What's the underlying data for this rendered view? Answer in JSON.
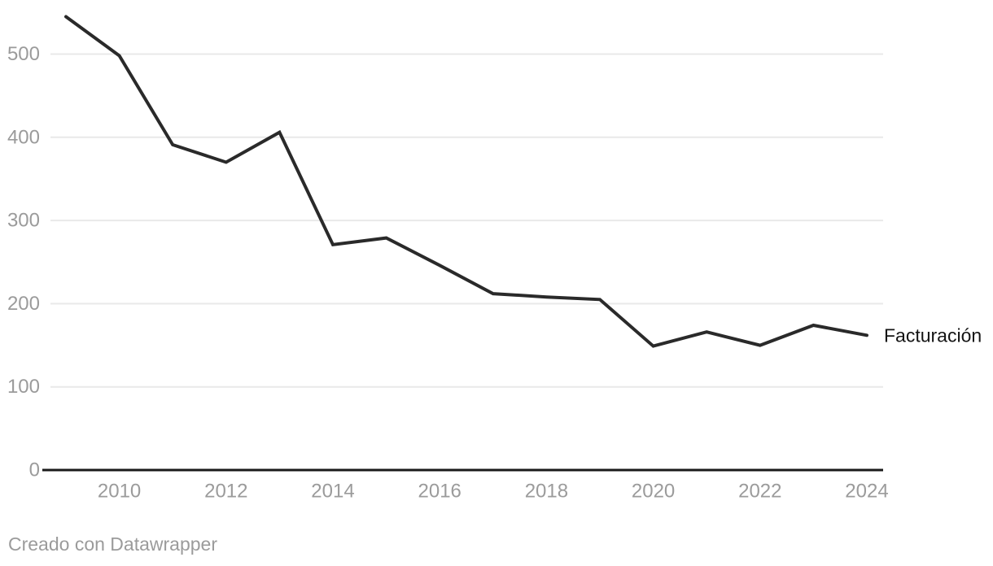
{
  "chart_data": {
    "type": "line",
    "title": "",
    "xlabel": "",
    "ylabel": "",
    "x": [
      2009,
      2010,
      2011,
      2012,
      2013,
      2014,
      2015,
      2016,
      2017,
      2018,
      2019,
      2020,
      2021,
      2022,
      2023,
      2024
    ],
    "series": [
      {
        "name": "Facturación",
        "values": [
          545,
          498,
          391,
          370,
          406,
          271,
          279,
          246,
          212,
          208,
          205,
          149,
          166,
          150,
          174,
          162
        ]
      }
    ],
    "x_tick_labels": [
      "2010",
      "2012",
      "2014",
      "2016",
      "2018",
      "2020",
      "2022",
      "2024"
    ],
    "x_tick_values": [
      2010,
      2012,
      2014,
      2016,
      2018,
      2020,
      2022,
      2024
    ],
    "y_tick_labels": [
      "0",
      "100",
      "200",
      "300",
      "400",
      "500"
    ],
    "y_tick_values": [
      0,
      100,
      200,
      300,
      400,
      500
    ],
    "xlim": [
      2009,
      2024
    ],
    "ylim": [
      0,
      560
    ],
    "grid": "horizontal",
    "legend_position": "end-of-line",
    "colors": {
      "line": "#2a2a2a",
      "grid": "#e9e9e9",
      "axis": "#1a1a1a",
      "tick_label": "#9b9b9b",
      "series_label": "#141414",
      "background": "#ffffff"
    }
  },
  "footer": {
    "text": "Creado con Datawrapper"
  }
}
